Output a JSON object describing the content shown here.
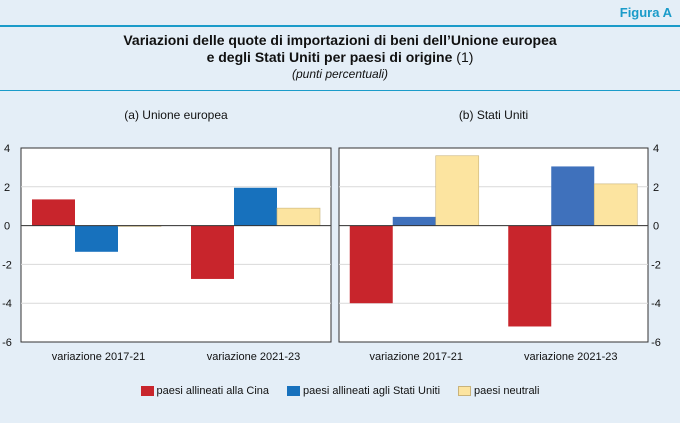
{
  "header": {
    "figure_label": "Figura A",
    "title_line1": "Variazioni delle quote di importazioni di beni dell’Unione europea",
    "title_line2": "e degli Stati Uniti per paesi di origine",
    "title_note": "(1)",
    "subtitle": "(punti percentuali)"
  },
  "colors": {
    "background": "#e4eef7",
    "accent": "#1a9bc9",
    "red": "#c8252c",
    "blue_eu": "#1771bd",
    "blue_us": "#3f71bc",
    "yellow": "#fce4a0"
  },
  "chart_data": [
    {
      "type": "bar",
      "title": "(a) Unione europea",
      "categories": [
        "variazione 2017-21",
        "variazione 2021-23"
      ],
      "series": [
        {
          "name": "paesi allineati alla Cina",
          "values": [
            1.35,
            -2.75
          ]
        },
        {
          "name": "paesi allineati agli Stati Uniti",
          "values": [
            -1.35,
            1.95
          ]
        },
        {
          "name": "paesi neutrali",
          "values": [
            0.0,
            0.9
          ]
        }
      ],
      "ylim": [
        -6,
        4
      ],
      "yticks": [
        "-6",
        "-4",
        "-2",
        "0",
        "2",
        "4"
      ],
      "legend": "bottom"
    },
    {
      "type": "bar",
      "title": "(b) Stati Uniti",
      "categories": [
        "variazione 2017-21",
        "variazione 2021-23"
      ],
      "series": [
        {
          "name": "paesi allineati alla Cina",
          "values": [
            -4.0,
            -5.2
          ]
        },
        {
          "name": "paesi allineati agli Stati Uniti",
          "values": [
            0.45,
            3.05
          ]
        },
        {
          "name": "paesi neutrali",
          "values": [
            3.6,
            2.15
          ]
        }
      ],
      "ylim": [
        -6,
        4
      ],
      "yticks": [
        "-6",
        "-4",
        "-2",
        "0",
        "2",
        "4"
      ],
      "legend": "bottom"
    }
  ],
  "legend": [
    {
      "label": "paesi allineati alla Cina"
    },
    {
      "label": "paesi allineati agli Stati Uniti"
    },
    {
      "label": "paesi neutrali"
    }
  ]
}
